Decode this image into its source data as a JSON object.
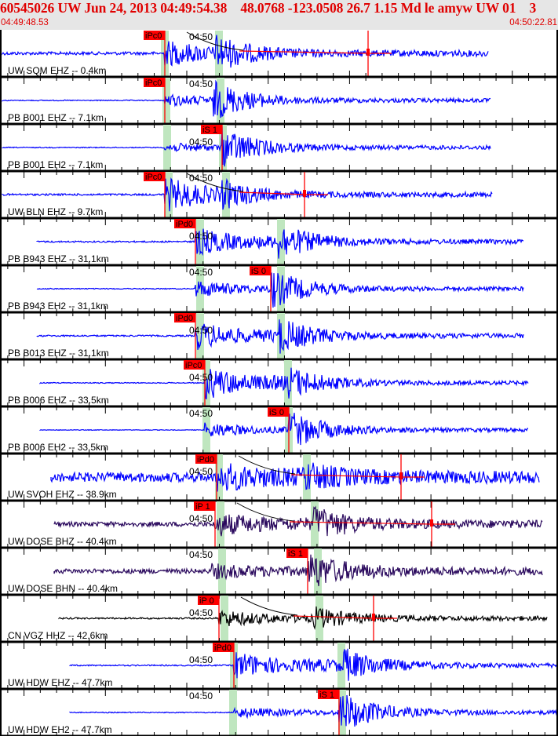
{
  "header": {
    "title": "60545026 UW Jun 24, 2013 04:49:54.38    48.0768 -123.0508 26.7 1.15 Md le amyw UW 01    3",
    "start_time": "04:49:48.53",
    "end_time": "04:50:22.81"
  },
  "time_tick_label": "04:50",
  "colors": {
    "trace_blue": "#0000ff",
    "trace_purple": "#2b0a5e",
    "trace_black": "#000000",
    "pick": "#ff0000",
    "window": "#bfe6bf"
  },
  "traces": [
    {
      "label": "UW SQM EHZ -- 0.4km",
      "pick": "iPc0"
    },
    {
      "label": "PB B001 EHZ -- 7.1km",
      "pick": "iPc0"
    },
    {
      "label": "PB B001 EH2 -- 7.1km",
      "pick": "iS 1"
    },
    {
      "label": "UW BLN EHZ -- 9.7km",
      "pick": "iPc0"
    },
    {
      "label": "PB B943 EHZ -- 31.1km",
      "pick": "iPd0"
    },
    {
      "label": "PB B943 EH2 -- 31.1km",
      "pick": "iS 0"
    },
    {
      "label": "PB B013 EHZ -- 31.1km",
      "pick": "iPd0"
    },
    {
      "label": "PB B006 EHZ -- 33.5km",
      "pick": "iPc0"
    },
    {
      "label": "PB B006 EH2 -- 33.5km",
      "pick": "iS 0"
    },
    {
      "label": "UW SVOH EHZ -- 38.9km",
      "pick": "iPd0"
    },
    {
      "label": "UW DOSE BHZ -- 40.4km",
      "pick": "iP 1"
    },
    {
      "label": "UW DOSE BHN -- 40.4km",
      "pick": "iS 1"
    },
    {
      "label": "CN VGZ HHZ -- 42.6km",
      "pick": "iP 0"
    },
    {
      "label": "UW HDW EHZ -- 47.7km",
      "pick": "iPd0"
    },
    {
      "label": "UW HDW EH2 -- 47.7km",
      "pick": "iS 1"
    }
  ]
}
